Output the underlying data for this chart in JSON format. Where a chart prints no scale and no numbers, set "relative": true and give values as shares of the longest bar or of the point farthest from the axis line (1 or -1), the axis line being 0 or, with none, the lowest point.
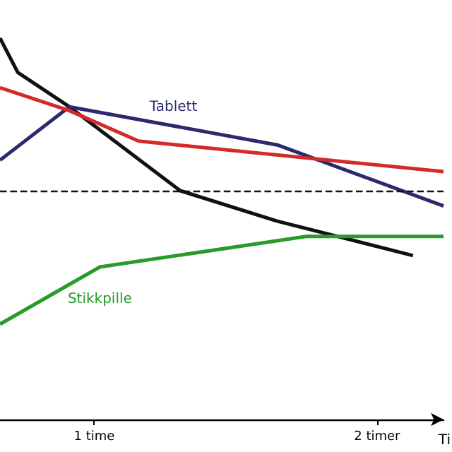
{
  "chart_data": {
    "type": "line",
    "relative": true,
    "xlabel": "Ti",
    "xlim": [
      0.667,
      2.235
    ],
    "xticks": [
      {
        "value": 1,
        "label": "1 time"
      },
      {
        "value": 2,
        "label": "2 timer"
      }
    ],
    "tick_labels": "x",
    "grid": false,
    "legend": false,
    "marker": "none",
    "line_style": "solid",
    "series": [
      {
        "color": "#111111",
        "x": [
          0.667,
          0.73,
          0.912,
          1.304,
          1.647,
          2.127
        ],
        "values": [
          1,
          0.91,
          0.82,
          0.6,
          0.52,
          0.43
        ]
      },
      {
        "name": "Tablett",
        "color": "#2b2a6e",
        "x": [
          0.667,
          0.912,
          1.28,
          1.647,
          2.235
        ],
        "values": [
          0.68,
          0.82,
          0.77,
          0.72,
          0.56
        ]
      },
      {
        "color": "#d42a2a",
        "x": [
          0.667,
          0.912,
          1.157,
          2.235
        ],
        "values": [
          0.87,
          0.81,
          0.73,
          0.65
        ]
      },
      {
        "name": "Stikkpille",
        "color": "#2a9a2a",
        "x": [
          0.667,
          1.02,
          1.75,
          2.235
        ],
        "values": [
          0.25,
          0.4,
          0.48,
          0.48
        ]
      }
    ],
    "ref_lines": [
      {
        "axis": "y",
        "value": 0.6,
        "color": "#111111",
        "line_style": "dashed"
      }
    ]
  }
}
